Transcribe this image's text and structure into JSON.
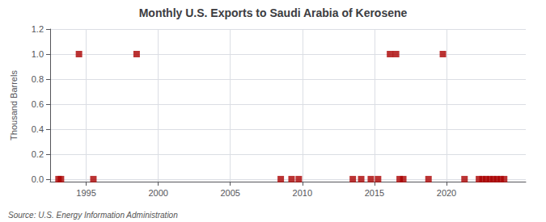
{
  "chart_data": {
    "type": "scatter",
    "title": "Monthly U.S. Exports to Saudi Arabia of Kerosene",
    "ylabel": "Thousand Barrels",
    "annotations": [
      "Source: U.S. Energy Information Administration"
    ],
    "x": [
      1993.08,
      1993.25,
      1994.5,
      1995.5,
      1998.5,
      2008.5,
      2009.25,
      2009.75,
      2013.5,
      2014.08,
      2014.75,
      2015.25,
      2016.08,
      2016.5,
      2016.75,
      2017.0,
      2018.75,
      2019.75,
      2021.25,
      2022.25,
      2022.5,
      2022.75,
      2023.0,
      2023.25,
      2023.5,
      2023.75,
      2024.0
    ],
    "values": [
      0.0,
      0.0,
      1.0,
      0.0,
      1.0,
      0.0,
      0.0,
      0.0,
      0.0,
      0.0,
      0.0,
      0.0,
      1.0,
      1.0,
      0.0,
      0.0,
      0.0,
      1.0,
      0.0,
      0.0,
      0.0,
      0.0,
      0.0,
      0.0,
      0.0,
      0.0,
      0.0
    ],
    "color": "#aa0000",
    "marker": "square",
    "xlim": [
      1992.5,
      2025.5
    ],
    "xticks": [
      1995,
      2000,
      2005,
      2010,
      2015,
      2020
    ],
    "ylim": [
      -0.02,
      1.2
    ],
    "yticks": [
      {
        "value": 0.0,
        "label": "0.0"
      },
      0.2,
      0.4,
      0.6,
      0.8,
      {
        "value": 1.0,
        "label": "1.0"
      },
      1.2
    ],
    "grid": true
  }
}
